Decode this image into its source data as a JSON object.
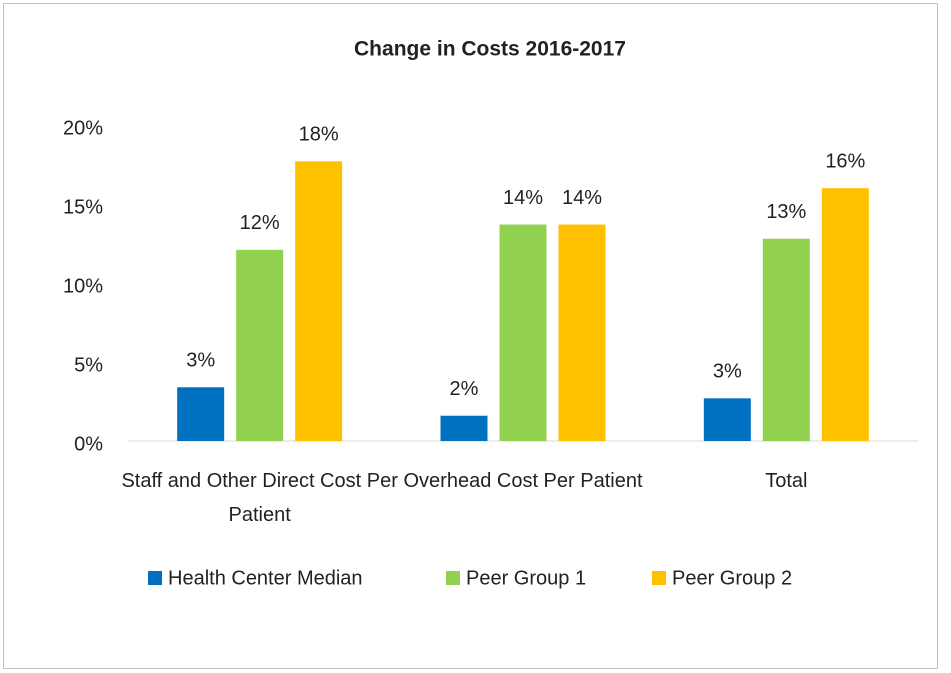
{
  "chart_data": {
    "type": "bar",
    "title": "Change in Costs 2016-2017",
    "categories": [
      "Staff and Other Direct Cost Per Patient",
      "Overhead Cost Per Patient",
      "Total"
    ],
    "series": [
      {
        "name": "Health Center Median",
        "color": "#0070c0",
        "values": [
          3.4,
          1.6,
          2.7
        ],
        "value_labels": [
          "3%",
          "2%",
          "3%"
        ]
      },
      {
        "name": "Peer Group 1",
        "color": "#92d050",
        "values": [
          12.1,
          13.7,
          12.8
        ],
        "value_labels": [
          "12%",
          "14%",
          "13%"
        ]
      },
      {
        "name": "Peer Group 2",
        "color": "#ffc000",
        "values": [
          17.7,
          13.7,
          16.0
        ],
        "value_labels": [
          "18%",
          "14%",
          "16%"
        ]
      }
    ],
    "ylim": [
      0,
      20
    ],
    "yticks": [
      {
        "value": 0,
        "label": "0%"
      },
      {
        "value": 5,
        "label": "5%"
      },
      {
        "value": 10,
        "label": "10%"
      },
      {
        "value": 15,
        "label": "15%"
      },
      {
        "value": 20,
        "label": "20%"
      }
    ],
    "grid": false,
    "legend": "bottom"
  }
}
